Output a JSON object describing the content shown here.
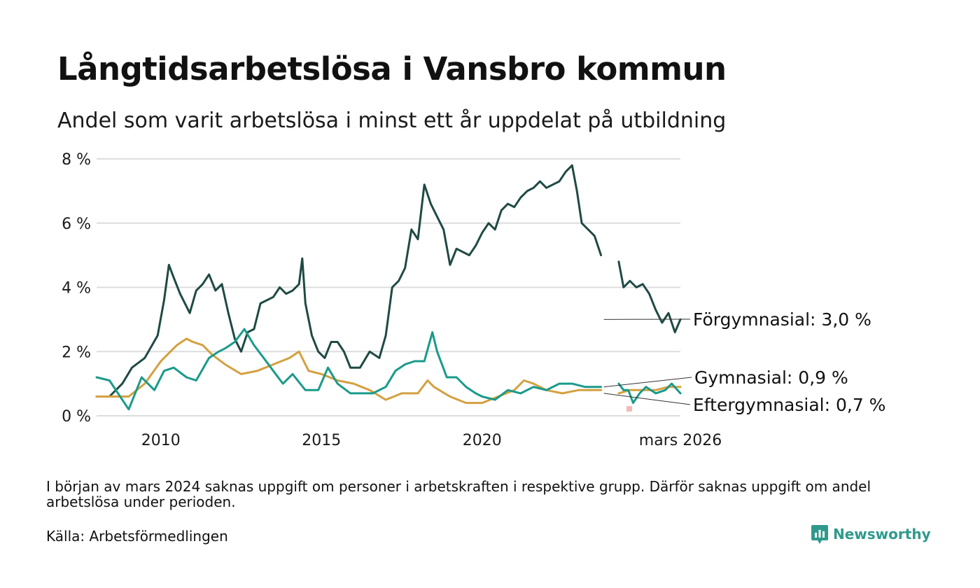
{
  "title": "Långtidsarbetslösa i Vansbro kommun",
  "subtitle": "Andel som varit arbetslösa i minst ett år uppdelat på utbildning",
  "note": "I början av mars 2024 saknas uppgift om personer i arbetskraften i respektive grupp. Därför saknas uppgift om andel arbetslösa under perioden.",
  "source": "Källa: Arbetsförmedlingen",
  "brand": "Newsworthy",
  "colors": {
    "forgymnasial": "#1f4a44",
    "gymnasial": "#d4a040",
    "eftergymnasial": "#1a9a8a",
    "grid": "#dddddd",
    "brand": "#2f9a8c",
    "missing": "#f4b8b8"
  },
  "chart_data": {
    "type": "line",
    "title": "Långtidsarbetslösa i Vansbro kommun",
    "ylabel": "",
    "xlabel": "",
    "ylim": [
      0,
      8
    ],
    "xlim": [
      2008.0,
      2026.17
    ],
    "y_ticks": [
      0,
      2,
      4,
      6,
      8
    ],
    "y_tick_labels": [
      "0 %",
      "2 %",
      "4 %",
      "6 %",
      "8 %"
    ],
    "x_ticks": [
      2010,
      2015,
      2020,
      2026.17
    ],
    "x_tick_labels": [
      "2010",
      "2015",
      "2020",
      "mars 2026"
    ],
    "gaps": [
      [
        2023.75,
        2024.25
      ]
    ],
    "missing_marker": {
      "x": 2024.58,
      "y": 0.3
    },
    "series": [
      {
        "name": "Förgymnasial",
        "end_label": "Förgymnasial: 3,0 %",
        "color": "#1f4a44",
        "x": [
          2008.0,
          2008.4,
          2008.8,
          2009.1,
          2009.5,
          2009.9,
          2010.1,
          2010.25,
          2010.4,
          2010.6,
          2010.9,
          2011.1,
          2011.3,
          2011.5,
          2011.7,
          2011.9,
          2012.1,
          2012.3,
          2012.5,
          2012.7,
          2012.9,
          2013.1,
          2013.3,
          2013.5,
          2013.7,
          2013.9,
          2014.1,
          2014.3,
          2014.4,
          2014.5,
          2014.7,
          2014.9,
          2015.1,
          2015.3,
          2015.5,
          2015.7,
          2015.9,
          2016.2,
          2016.5,
          2016.8,
          2017.0,
          2017.2,
          2017.4,
          2017.6,
          2017.8,
          2018.0,
          2018.2,
          2018.4,
          2018.6,
          2018.8,
          2019.0,
          2019.2,
          2019.4,
          2019.6,
          2019.8,
          2020.0,
          2020.2,
          2020.4,
          2020.6,
          2020.8,
          2021.0,
          2021.2,
          2021.4,
          2021.6,
          2021.8,
          2022.0,
          2022.2,
          2022.4,
          2022.6,
          2022.8,
          2022.95,
          2023.1,
          2023.3,
          2023.5,
          2023.7
        ],
        "y": [
          0.6,
          0.6,
          1.0,
          1.5,
          1.8,
          2.5,
          3.6,
          4.7,
          4.3,
          3.8,
          3.2,
          3.9,
          4.1,
          4.4,
          3.9,
          4.1,
          3.2,
          2.4,
          2.0,
          2.6,
          2.7,
          3.5,
          3.6,
          3.7,
          4.0,
          3.8,
          3.9,
          4.1,
          4.9,
          3.5,
          2.5,
          2.0,
          1.8,
          2.3,
          2.3,
          2.0,
          1.5,
          1.5,
          2.0,
          1.8,
          2.5,
          4.0,
          4.2,
          4.6,
          5.8,
          5.5,
          7.2,
          6.6,
          6.2,
          5.8,
          4.7,
          5.2,
          5.1,
          5.0,
          5.3,
          5.7,
          6.0,
          5.8,
          6.4,
          6.6,
          6.5,
          6.8,
          7.0,
          7.1,
          7.3,
          7.1,
          7.2,
          7.3,
          7.6,
          7.8,
          7.0,
          6.0,
          5.8,
          5.6,
          5.0
        ]
      },
      {
        "name": "Förgymnasial (efter uppehåll)",
        "end_label": "",
        "color": "#1f4a44",
        "x": [
          2024.25,
          2024.4,
          2024.6,
          2024.8,
          2025.0,
          2025.2,
          2025.4,
          2025.6,
          2025.8,
          2026.0,
          2026.17
        ],
        "y": [
          4.8,
          4.0,
          4.2,
          4.0,
          4.1,
          3.8,
          3.3,
          2.9,
          3.2,
          2.6,
          3.0
        ]
      },
      {
        "name": "Gymnasial",
        "end_label": "Gymnasial: 0,9 %",
        "color": "#d4a040",
        "x": [
          2008.0,
          2008.5,
          2009.0,
          2009.5,
          2010.0,
          2010.5,
          2010.8,
          2011.0,
          2011.3,
          2011.6,
          2012.0,
          2012.5,
          2013.0,
          2013.5,
          2014.0,
          2014.3,
          2014.6,
          2015.0,
          2015.5,
          2016.0,
          2016.5,
          2017.0,
          2017.5,
          2018.0,
          2018.3,
          2018.5,
          2019.0,
          2019.5,
          2020.0,
          2020.5,
          2021.0,
          2021.3,
          2021.6,
          2022.0,
          2022.5,
          2023.0,
          2023.5,
          2023.7
        ],
        "y": [
          0.6,
          0.6,
          0.6,
          1.0,
          1.7,
          2.2,
          2.4,
          2.3,
          2.2,
          1.9,
          1.6,
          1.3,
          1.4,
          1.6,
          1.8,
          2.0,
          1.4,
          1.3,
          1.1,
          1.0,
          0.8,
          0.5,
          0.7,
          0.7,
          1.1,
          0.9,
          0.6,
          0.4,
          0.4,
          0.6,
          0.8,
          1.1,
          1.0,
          0.8,
          0.7,
          0.8,
          0.8,
          0.8
        ]
      },
      {
        "name": "Gymnasial (efter uppehåll)",
        "end_label": "",
        "color": "#d4a040",
        "x": [
          2024.25,
          2024.6,
          2025.0,
          2025.4,
          2025.8,
          2026.17
        ],
        "y": [
          0.7,
          0.8,
          0.8,
          0.8,
          0.9,
          0.9
        ]
      },
      {
        "name": "Eftergymnasial",
        "end_label": "Eftergymnasial: 0,7 %",
        "color": "#1a9a8a",
        "x": [
          2008.0,
          2008.4,
          2008.8,
          2009.0,
          2009.4,
          2009.8,
          2010.1,
          2010.4,
          2010.8,
          2011.1,
          2011.5,
          2011.8,
          2012.0,
          2012.3,
          2012.6,
          2012.9,
          2013.2,
          2013.5,
          2013.8,
          2014.1,
          2014.5,
          2014.9,
          2015.2,
          2015.5,
          2015.9,
          2016.2,
          2016.6,
          2017.0,
          2017.3,
          2017.6,
          2017.9,
          2018.2,
          2018.45,
          2018.6,
          2018.9,
          2019.2,
          2019.5,
          2019.8,
          2020.0,
          2020.4,
          2020.8,
          2021.2,
          2021.6,
          2022.0,
          2022.4,
          2022.8,
          2023.2,
          2023.7
        ],
        "y": [
          1.2,
          1.1,
          0.5,
          0.2,
          1.2,
          0.8,
          1.4,
          1.5,
          1.2,
          1.1,
          1.8,
          2.0,
          2.1,
          2.3,
          2.7,
          2.2,
          1.8,
          1.4,
          1.0,
          1.3,
          0.8,
          0.8,
          1.5,
          1.0,
          0.7,
          0.7,
          0.7,
          0.9,
          1.4,
          1.6,
          1.7,
          1.7,
          2.6,
          2.0,
          1.2,
          1.2,
          0.9,
          0.7,
          0.6,
          0.5,
          0.8,
          0.7,
          0.9,
          0.8,
          1.0,
          1.0,
          0.9,
          0.9
        ]
      },
      {
        "name": "Eftergymnasial (efter uppehåll)",
        "end_label": "",
        "color": "#1a9a8a",
        "x": [
          2024.25,
          2024.4,
          2024.55,
          2024.7,
          2024.9,
          2025.1,
          2025.4,
          2025.7,
          2025.9,
          2026.17
        ],
        "y": [
          1.0,
          0.8,
          0.8,
          0.4,
          0.7,
          0.9,
          0.7,
          0.8,
          1.0,
          0.7
        ]
      }
    ]
  }
}
